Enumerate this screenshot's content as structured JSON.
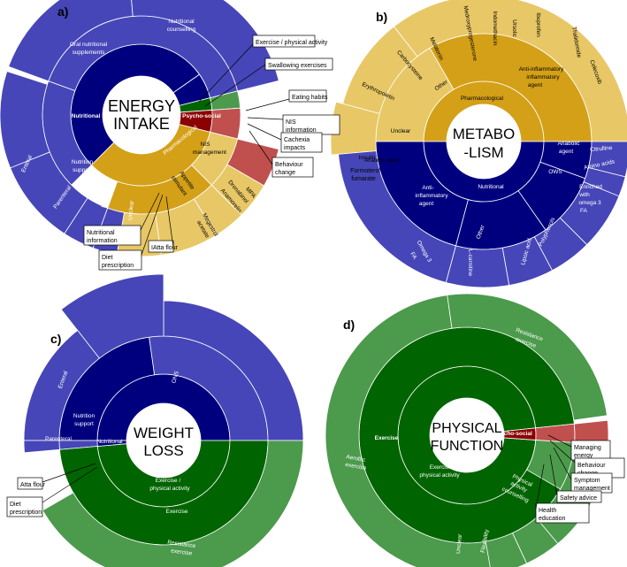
{
  "panels": {
    "a": {
      "letter": "a)",
      "center_lines": [
        "ENERGY",
        "INTAKE"
      ]
    },
    "b": {
      "letter": "b)",
      "center_lines": [
        "METABO",
        "-LISM"
      ]
    },
    "c": {
      "letter": "c)",
      "center_lines": [
        "WEIGHT",
        "LOSS"
      ]
    },
    "d": {
      "letter": "d)",
      "center_lines": [
        "PHYSICAL",
        "FUNCTION"
      ]
    }
  },
  "colors": {
    "nutritional_dark": "#00007f",
    "nutritional_light": "#4646b8",
    "pharmacological_dark": "#d4a017",
    "pharmacological_light": "#e8c766",
    "psychosocial_dark": "#8b0000",
    "psychosocial_light": "#c0504d",
    "exercise_dark": "#006400",
    "exercise_light": "#4c9a4c",
    "white": "#ffffff"
  },
  "chart_data": [
    {
      "type": "sunburst",
      "panel": "a",
      "title": "ENERGY INTAKE",
      "rings": [
        {
          "level": 1,
          "segments": [
            {
              "label": "Nutritional",
              "value": 64,
              "color": "nutritional_dark"
            },
            {
              "label": "Psycho-social",
              "value": 4,
              "color": "psychosocial_dark"
            },
            {
              "label": "Pharmacological",
              "value": 32,
              "color": "pharmacological_dark"
            }
          ]
        },
        {
          "level": 2,
          "segments": [
            {
              "label": "",
              "value": 50,
              "color": "nutritional_light"
            },
            {
              "label": "Nutrition support",
              "value": 14,
              "color": "nutritional_light"
            },
            {
              "label": "Exercise / physical activity",
              "value": 1,
              "color": "exercise_dark"
            },
            {
              "label": "",
              "value": 4,
              "color": "psychosocial_light"
            },
            {
              "label": "Appetite stimulant",
              "value": 22,
              "color": "pharmacological_light"
            },
            {
              "label": "NIS management",
              "value": 9,
              "color": "pharmacological_light"
            }
          ]
        },
        {
          "level": 3,
          "segments": [
            {
              "label": "Oral nutritional supplements",
              "value": 25
            },
            {
              "label": "Nutritional counselling",
              "value": 25
            },
            {
              "label": "Enteral",
              "value": 8
            },
            {
              "label": "Parenteral",
              "value": 6
            },
            {
              "label": "NIS management",
              "value": 4
            },
            {
              "label": "Unclear",
              "value": 3
            },
            {
              "label": "Megestrol acetate",
              "value": 11
            },
            {
              "label": "Anamorelin",
              "value": 4
            },
            {
              "label": "Dronabinol",
              "value": 3
            },
            {
              "label": "MPA",
              "value": 2
            }
          ]
        }
      ],
      "callouts": [
        "Exercise / physical activity",
        "Swallowing exercises",
        "Eating habits",
        "NIS information",
        "Cachexia impacts",
        "Behaviour change",
        "Nutritional information",
        "Diet prescription",
        "IAtta flour"
      ]
    },
    {
      "type": "sunburst",
      "panel": "b",
      "title": "METABO-LISM",
      "rings": [
        {
          "level": 1,
          "segments": [
            {
              "label": "Pharmacological",
              "value": 40,
              "color": "pharmacological_dark"
            },
            {
              "label": "Unclear",
              "value": 10,
              "color": "pharmacological_dark"
            },
            {
              "label": "Nutritional",
              "value": 50,
              "color": "nutritional_dark"
            }
          ]
        },
        {
          "level": 2,
          "segments": [
            {
              "label": "Anti-inflammatory agent",
              "value": 30
            },
            {
              "label": "Other",
              "value": 10
            },
            {
              "label": "Anabolic agent",
              "value": 6
            },
            {
              "label": "OWS",
              "value": 12
            },
            {
              "label": "Other",
              "value": 10
            },
            {
              "label": "Anti-inflammatory agent",
              "value": 22
            }
          ]
        },
        {
          "level": 3,
          "segments": [
            {
              "label": "Celecoxib",
              "value": 10
            },
            {
              "label": "Thalidomide",
              "value": 6
            },
            {
              "label": "Ibuprofen",
              "value": 5
            },
            {
              "label": "Ursolic",
              "value": 3
            },
            {
              "label": "Indomethacin",
              "value": 3
            },
            {
              "label": "Medroxyprogesterone",
              "value": 3
            },
            {
              "label": "Melatonin",
              "value": 3
            },
            {
              "label": "Carbocysteine",
              "value": 3
            },
            {
              "label": "Erythropoietin",
              "value": 3
            },
            {
              "label": "Insulin",
              "value": 4
            },
            {
              "label": "Formoterol fumarate",
              "value": 4
            },
            {
              "label": "Omega 3 FA",
              "value": 14
            },
            {
              "label": "L-carnitine",
              "value": 6
            },
            {
              "label": "Lipoic acid",
              "value": 4
            },
            {
              "label": "Polyphenols",
              "value": 4
            },
            {
              "label": "Enriched with omega 3 FA",
              "value": 7
            },
            {
              "label": "Amino acids",
              "value": 3
            },
            {
              "label": "Citrulline",
              "value": 3
            }
          ]
        }
      ],
      "extra_labels": [
        "Anabolic agent"
      ]
    },
    {
      "type": "sunburst",
      "panel": "c",
      "title": "WEIGHT LOSS",
      "rings": [
        {
          "level": 1,
          "segments": [
            {
              "label": "Nutritional",
              "value": 50,
              "color": "nutritional_dark"
            },
            {
              "label": "Exercise / physical activity",
              "value": 50,
              "color": "exercise_dark"
            }
          ]
        },
        {
          "level": 2,
          "segments": [
            {
              "label": "ONS",
              "value": 25
            },
            {
              "label": "Nutrition support",
              "value": 22
            },
            {
              "label": "Exercise",
              "value": 50
            }
          ]
        },
        {
          "level": 3,
          "segments": [
            {
              "label": "Enteral",
              "value": 12
            },
            {
              "label": "Parenteral",
              "value": 10
            },
            {
              "label": "Resistance exercise",
              "value": 42
            }
          ]
        }
      ],
      "callouts": [
        "Atta flour",
        "Diet prescription"
      ]
    },
    {
      "type": "sunburst",
      "panel": "d",
      "title": "PHYSICAL FUNCTION",
      "rings": [
        {
          "level": 1,
          "segments": [
            {
              "label": "Exercise / physical activity",
              "value": 93,
              "color": "exercise_dark"
            },
            {
              "label": "Psycho-social",
              "value": 7,
              "color": "psychosocial_dark"
            }
          ]
        },
        {
          "level": 2,
          "segments": [
            {
              "label": "Exercise",
              "value": 80
            },
            {
              "label": "Physical activity counselling",
              "value": 8
            }
          ]
        },
        {
          "level": 3,
          "segments": [
            {
              "label": "Resistance exercise",
              "value": 40
            },
            {
              "label": "Aerobic exercise",
              "value": 24
            },
            {
              "label": "Unclear",
              "value": 4
            },
            {
              "label": "Flexibility",
              "value": 4
            }
          ]
        }
      ],
      "callouts": [
        "Managing energy",
        "Behaviour change",
        "Symptom management",
        "Safety advice",
        "Health education"
      ]
    }
  ]
}
